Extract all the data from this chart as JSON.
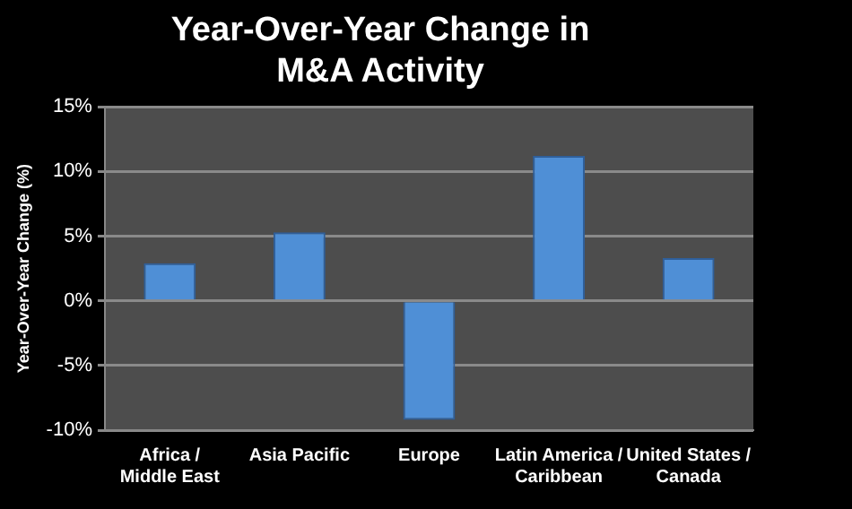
{
  "chart_data": {
    "type": "bar",
    "title": "Year-Over-Year Change in M&A Activity",
    "ylabel": "Year-Over-Year Change (%)",
    "categories": [
      "Africa / Middle East",
      "Asia Pacific",
      "Europe",
      "Latin America / Caribbean",
      "United States / Canada"
    ],
    "values": [
      2.9,
      5.3,
      -9.2,
      11.2,
      3.3
    ],
    "color": "#4f8fd6",
    "ylim": [
      -10,
      15
    ],
    "yticks": [
      {
        "value": -10,
        "label": "-10%"
      },
      {
        "value": -5,
        "label": "-5%"
      },
      {
        "value": 0,
        "label": "0%"
      },
      {
        "value": 5,
        "label": "5%"
      },
      {
        "value": 10,
        "label": "10%"
      },
      {
        "value": 15,
        "label": "15%"
      }
    ],
    "grid": "y"
  }
}
